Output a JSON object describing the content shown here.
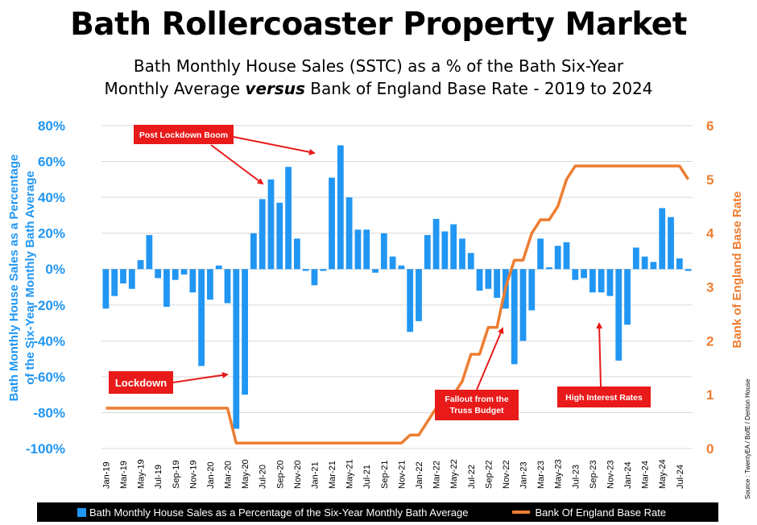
{
  "title": "Bath Rollercoaster Property Market",
  "subtitle_line1": "Bath Monthly House Sales (SSTC) as a % of the Bath Six-Year",
  "subtitle_line2_pre": "Monthly Average ",
  "subtitle_line2_em": "versus",
  "subtitle_line2_post": " Bank of England Base Rate - 2019 to 2024",
  "source": "Source : TwentyEA / BofE / Denton House",
  "colors": {
    "bars": "#2196F3",
    "line": "#ED7D31",
    "annotation": "#E81A1A"
  },
  "chart_data": {
    "type": "bar",
    "title": "Bath Rollercoaster Property Market",
    "ylabel": "Bath Monthly House Sales as a Percentage of the Six-Year Monthly Bath Average",
    "ylabel_right": "Bank of England Base Rate",
    "ylim": [
      -100,
      80
    ],
    "ylim_right": [
      0,
      6
    ],
    "yticks": [
      "80%",
      "60%",
      "40%",
      "20%",
      "0%",
      "-20%",
      "-40%",
      "-60%",
      "-80%",
      "-100%"
    ],
    "yticks_right": [
      "6",
      "5",
      "4",
      "3",
      "2",
      "1",
      "0"
    ],
    "grid": true,
    "legend_position": "bottom",
    "xtick_labels": [
      "Jan-19",
      "Mar-19",
      "May-19",
      "Jul-19",
      "Sep-19",
      "Nov-19",
      "Jan-20",
      "Mar-20",
      "May-20",
      "Jul-20",
      "Sep-20",
      "Nov-20",
      "Jan-21",
      "Mar-21",
      "May-21",
      "Jul-21",
      "Sep-21",
      "Nov-21",
      "Jan-22",
      "Mar-22",
      "May-22",
      "Jul-22",
      "Sep-22",
      "Nov-22",
      "Jan-23",
      "Mar-23",
      "May-23",
      "Jul-23",
      "Sep-23",
      "Nov-23",
      "Jan-24",
      "Mar-24",
      "May-24",
      "Jul-24"
    ],
    "categories": [
      "Jan-19",
      "Feb-19",
      "Mar-19",
      "Apr-19",
      "May-19",
      "Jun-19",
      "Jul-19",
      "Aug-19",
      "Sep-19",
      "Oct-19",
      "Nov-19",
      "Dec-19",
      "Jan-20",
      "Feb-20",
      "Mar-20",
      "Apr-20",
      "May-20",
      "Jun-20",
      "Jul-20",
      "Aug-20",
      "Sep-20",
      "Oct-20",
      "Nov-20",
      "Dec-20",
      "Jan-21",
      "Feb-21",
      "Mar-21",
      "Apr-21",
      "May-21",
      "Jun-21",
      "Jul-21",
      "Aug-21",
      "Sep-21",
      "Oct-21",
      "Nov-21",
      "Dec-21",
      "Jan-22",
      "Feb-22",
      "Mar-22",
      "Apr-22",
      "May-22",
      "Jun-22",
      "Jul-22",
      "Aug-22",
      "Sep-22",
      "Oct-22",
      "Nov-22",
      "Dec-22",
      "Jan-23",
      "Feb-23",
      "Mar-23",
      "Apr-23",
      "May-23",
      "Jun-23",
      "Jul-23",
      "Aug-23",
      "Sep-23",
      "Oct-23",
      "Nov-23",
      "Dec-23",
      "Jan-24",
      "Feb-24",
      "Mar-24",
      "Apr-24",
      "May-24",
      "Jun-24",
      "Jul-24",
      "Aug-24"
    ],
    "series": [
      {
        "name": "Bath Monthly House Sales as a Percentage of the Six-Year Monthly Bath Average",
        "type": "bar",
        "axis": "left",
        "values": [
          -22,
          -15,
          -8,
          -11,
          5,
          19,
          -5,
          -21,
          -6,
          -3,
          -13,
          -54,
          -17,
          2,
          -19,
          -89,
          -70,
          20,
          39,
          50,
          37,
          57,
          17,
          -1,
          -9,
          -1,
          51,
          69,
          40,
          22,
          22,
          -2,
          20,
          7,
          2,
          -35,
          -29,
          19,
          28,
          21,
          25,
          17,
          9,
          -12,
          -11,
          -16,
          -22,
          -53,
          -40,
          -23,
          17,
          1,
          13,
          15,
          -6,
          -5,
          -13,
          -13,
          -15,
          -51,
          -31,
          12,
          7,
          4,
          34,
          29,
          6,
          -1
        ]
      },
      {
        "name": "Bank Of England Base Rate",
        "type": "line",
        "axis": "right",
        "values": [
          0.75,
          0.75,
          0.75,
          0.75,
          0.75,
          0.75,
          0.75,
          0.75,
          0.75,
          0.75,
          0.75,
          0.75,
          0.75,
          0.75,
          0.75,
          0.1,
          0.1,
          0.1,
          0.1,
          0.1,
          0.1,
          0.1,
          0.1,
          0.1,
          0.1,
          0.1,
          0.1,
          0.1,
          0.1,
          0.1,
          0.1,
          0.1,
          0.1,
          0.1,
          0.1,
          0.25,
          0.25,
          0.5,
          0.75,
          0.75,
          1.0,
          1.25,
          1.75,
          1.75,
          2.25,
          2.25,
          3.0,
          3.5,
          3.5,
          4.0,
          4.25,
          4.25,
          4.5,
          5.0,
          5.25,
          5.25,
          5.25,
          5.25,
          5.25,
          5.25,
          5.25,
          5.25,
          5.25,
          5.25,
          5.25,
          5.25,
          5.25,
          5.0
        ]
      }
    ],
    "annotations": [
      {
        "text": "Post Lockdown Boom"
      },
      {
        "text": "Lockdown"
      },
      {
        "text": "Fallout from the Truss Budget"
      },
      {
        "text": "High Interest Rates"
      }
    ]
  },
  "legend": {
    "bars_label": "Bath Monthly House Sales as a Percentage of the Six-Year Monthly Bath Average",
    "line_label": "Bank Of England Base Rate"
  }
}
